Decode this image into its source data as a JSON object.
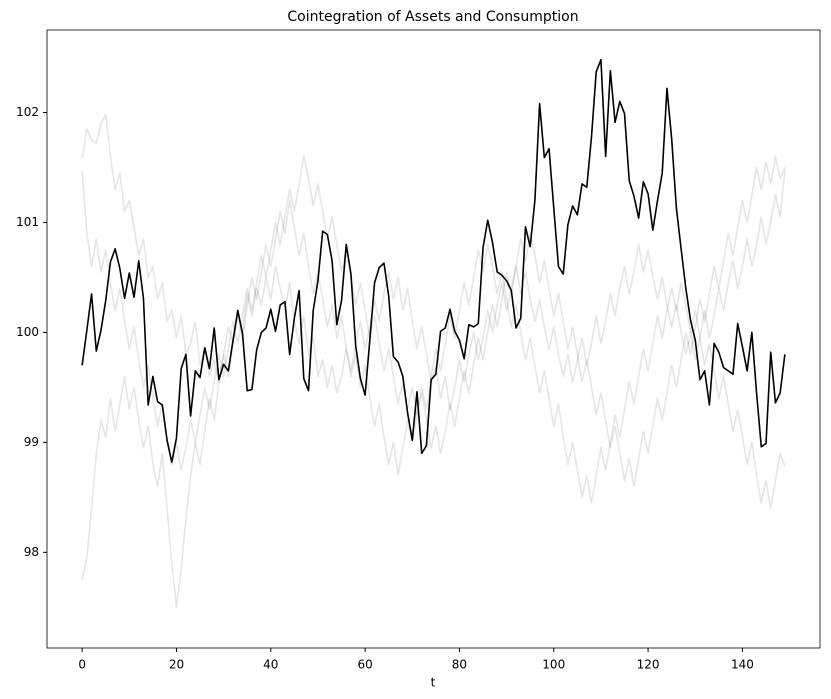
{
  "chart_data": {
    "type": "line",
    "title": "Cointegration of Assets and Consumption",
    "xlabel": "t",
    "x": [
      0,
      1,
      2,
      3,
      4,
      5,
      6,
      7,
      8,
      9,
      10,
      11,
      12,
      13,
      14,
      15,
      16,
      17,
      18,
      19,
      20,
      21,
      22,
      23,
      24,
      25,
      26,
      27,
      28,
      29,
      30,
      31,
      32,
      33,
      34,
      35,
      36,
      37,
      38,
      39,
      40,
      41,
      42,
      43,
      44,
      45,
      46,
      47,
      48,
      49,
      50,
      51,
      52,
      53,
      54,
      55,
      56,
      57,
      58,
      59,
      60,
      61,
      62,
      63,
      64,
      65,
      66,
      67,
      68,
      69,
      70,
      71,
      72,
      73,
      74,
      75,
      76,
      77,
      78,
      79,
      80,
      81,
      82,
      83,
      84,
      85,
      86,
      87,
      88,
      89,
      90,
      91,
      92,
      93,
      94,
      95,
      96,
      97,
      98,
      99,
      100,
      101,
      102,
      103,
      104,
      105,
      106,
      107,
      108,
      109,
      110,
      111,
      112,
      113,
      114,
      115,
      116,
      117,
      118,
      119,
      120,
      121,
      122,
      123,
      124,
      125,
      126,
      127,
      128,
      129,
      130,
      131,
      132,
      133,
      134,
      135,
      136,
      137,
      138,
      139,
      140,
      141,
      142,
      143,
      144,
      145,
      146,
      147,
      148,
      149
    ],
    "xlim": [
      -7.45,
      156.45
    ],
    "xticks": [
      0,
      20,
      40,
      60,
      80,
      100,
      120,
      140
    ],
    "ylim": [
      97.13,
      102.75
    ],
    "yticks": [
      98,
      99,
      100,
      101,
      102
    ],
    "series": [
      {
        "color": "#000000",
        "opacity": 0.1,
        "values": [
          101.58,
          101.85,
          101.75,
          101.72,
          101.9,
          101.98,
          101.6,
          101.3,
          101.45,
          101.1,
          101.2,
          100.95,
          100.7,
          100.85,
          100.5,
          100.6,
          100.3,
          100.45,
          100.1,
          100.2,
          99.95,
          100.15,
          99.8,
          99.9,
          100.1,
          99.7,
          99.85,
          99.6,
          99.75,
          99.55,
          99.8,
          100.05,
          99.9,
          100.2,
          100.0,
          100.35,
          100.15,
          100.4,
          100.25,
          100.5,
          100.3,
          100.6,
          100.4,
          100.2,
          100.45,
          100.1,
          99.9,
          100.15,
          99.8,
          99.95,
          99.6,
          99.75,
          99.5,
          99.7,
          99.45,
          99.6,
          99.85,
          99.65,
          99.9,
          100.1,
          99.85,
          100.05,
          100.3,
          100.1,
          100.35,
          100.55,
          100.3,
          100.5,
          100.2,
          100.4,
          100.1,
          99.85,
          100.05,
          99.8,
          99.55,
          99.7,
          99.4,
          99.6,
          99.3,
          99.5,
          99.75,
          99.55,
          99.8,
          100.0,
          99.75,
          99.95,
          100.2,
          100.0,
          100.25,
          100.45,
          100.2,
          100.4,
          100.6,
          100.35,
          100.55,
          100.3,
          100.1,
          100.3,
          100.05,
          99.85,
          100.05,
          99.8,
          99.6,
          99.8,
          99.55,
          99.75,
          99.95,
          99.7,
          99.9,
          100.15,
          99.9,
          100.1,
          100.35,
          100.15,
          100.4,
          100.6,
          100.35,
          100.55,
          100.8,
          100.55,
          100.75,
          100.5,
          100.3,
          100.5,
          100.25,
          100.05,
          100.25,
          100.0,
          99.8,
          100.0,
          99.75,
          99.95,
          100.2,
          99.95,
          100.15,
          100.4,
          100.2,
          100.45,
          100.65,
          100.4,
          100.6,
          100.85,
          100.6,
          100.8,
          101.05,
          100.8,
          101.0,
          101.25,
          101.05,
          101.47
        ]
      },
      {
        "color": "#000000",
        "opacity": 0.1,
        "values": [
          97.75,
          97.95,
          98.4,
          98.9,
          99.2,
          99.05,
          99.4,
          99.1,
          99.35,
          99.6,
          99.3,
          99.5,
          99.2,
          98.95,
          99.15,
          98.8,
          98.6,
          98.9,
          98.4,
          97.9,
          97.5,
          97.85,
          98.3,
          98.7,
          99.0,
          98.8,
          99.1,
          99.4,
          99.2,
          99.55,
          99.8,
          99.6,
          99.9,
          100.15,
          99.95,
          100.25,
          100.5,
          100.3,
          100.55,
          100.8,
          100.6,
          100.85,
          101.1,
          100.9,
          101.2,
          100.95,
          100.7,
          100.9,
          100.6,
          100.35,
          100.55,
          100.3,
          100.05,
          100.25,
          99.95,
          100.15,
          99.85,
          99.6,
          99.8,
          99.5,
          99.7,
          99.4,
          99.15,
          99.35,
          99.05,
          98.8,
          99.0,
          98.7,
          98.95,
          99.2,
          99.0,
          99.25,
          99.5,
          99.3,
          99.6,
          99.85,
          99.65,
          99.9,
          100.15,
          99.95,
          100.2,
          100.45,
          100.25,
          100.5,
          100.75,
          100.55,
          100.8,
          100.6,
          100.35,
          100.55,
          100.3,
          100.05,
          100.25,
          100.0,
          99.75,
          99.95,
          99.7,
          99.45,
          99.65,
          99.4,
          99.15,
          99.35,
          99.05,
          98.8,
          99.0,
          98.75,
          98.5,
          98.7,
          98.45,
          98.7,
          98.95,
          98.75,
          99.0,
          99.25,
          99.05,
          99.3,
          99.55,
          99.35,
          99.6,
          99.85,
          99.65,
          99.9,
          100.15,
          99.95,
          100.2,
          100.4,
          100.2,
          100.45,
          100.25,
          100.0,
          100.2,
          99.95,
          99.7,
          99.9,
          99.65,
          99.4,
          99.6,
          99.35,
          99.1,
          99.3,
          99.05,
          98.8,
          99.0,
          98.7,
          98.45,
          98.65,
          98.4,
          98.65,
          98.9,
          98.78
        ]
      },
      {
        "color": "#000000",
        "opacity": 0.1,
        "values": [
          101.47,
          100.9,
          100.6,
          100.85,
          100.55,
          100.75,
          100.45,
          100.2,
          100.4,
          100.1,
          99.85,
          100.05,
          99.75,
          99.5,
          99.7,
          99.4,
          99.15,
          99.35,
          99.05,
          98.8,
          99.0,
          98.75,
          98.95,
          99.2,
          99.0,
          99.25,
          99.5,
          99.3,
          99.55,
          99.8,
          99.6,
          99.85,
          100.1,
          99.9,
          100.15,
          100.4,
          100.2,
          100.45,
          100.7,
          100.5,
          100.75,
          101.0,
          100.8,
          101.05,
          101.3,
          101.1,
          101.35,
          101.6,
          101.4,
          101.15,
          101.35,
          101.1,
          100.85,
          101.05,
          100.8,
          100.55,
          100.75,
          100.5,
          100.25,
          100.45,
          100.2,
          99.95,
          100.15,
          99.9,
          99.65,
          99.85,
          99.6,
          99.35,
          99.55,
          99.3,
          99.5,
          99.25,
          99.45,
          99.2,
          98.95,
          99.15,
          98.9,
          99.1,
          99.35,
          99.15,
          99.4,
          99.65,
          99.45,
          99.7,
          99.95,
          99.75,
          100.0,
          100.25,
          100.05,
          100.3,
          100.55,
          100.35,
          100.6,
          100.85,
          100.65,
          100.9,
          100.7,
          100.45,
          100.65,
          100.4,
          100.15,
          100.35,
          100.1,
          99.85,
          100.05,
          99.8,
          99.55,
          99.75,
          99.5,
          99.25,
          99.45,
          99.2,
          98.95,
          99.15,
          98.9,
          98.65,
          98.85,
          98.6,
          98.85,
          99.1,
          98.9,
          99.15,
          99.4,
          99.2,
          99.45,
          99.7,
          99.5,
          99.75,
          100.0,
          99.8,
          100.05,
          100.3,
          100.1,
          100.35,
          100.6,
          100.4,
          100.65,
          100.9,
          100.7,
          100.95,
          101.2,
          101.0,
          101.25,
          101.5,
          101.3,
          101.55,
          101.35,
          101.6,
          101.4,
          101.5
        ]
      },
      {
        "color": "#000000",
        "opacity": 1,
        "values": [
          99.7,
          100.02,
          100.35,
          99.83,
          100.02,
          100.29,
          100.64,
          100.76,
          100.58,
          100.31,
          100.54,
          100.32,
          100.65,
          100.31,
          99.34,
          99.6,
          99.37,
          99.34,
          99.02,
          98.82,
          99.04,
          99.67,
          99.8,
          99.24,
          99.65,
          99.59,
          99.86,
          99.67,
          100.04,
          99.57,
          99.71,
          99.65,
          99.93,
          100.2,
          99.99,
          99.47,
          99.48,
          99.84,
          100.0,
          100.04,
          100.21,
          100.01,
          100.25,
          100.28,
          99.8,
          100.13,
          100.38,
          99.58,
          99.47,
          100.2,
          100.47,
          100.92,
          100.89,
          100.65,
          100.07,
          100.29,
          100.8,
          100.53,
          99.88,
          99.58,
          99.43,
          99.93,
          100.45,
          100.59,
          100.63,
          100.33,
          99.78,
          99.73,
          99.6,
          99.27,
          99.02,
          99.46,
          98.9,
          98.97,
          99.57,
          99.62,
          100.01,
          100.04,
          100.21,
          100.01,
          99.93,
          99.76,
          100.07,
          100.05,
          100.08,
          100.77,
          101.02,
          100.82,
          100.55,
          100.52,
          100.47,
          100.38,
          100.04,
          100.13,
          100.96,
          100.78,
          101.2,
          102.08,
          101.59,
          101.67,
          101.13,
          100.6,
          100.53,
          100.98,
          101.15,
          101.07,
          101.35,
          101.32,
          101.78,
          102.37,
          102.48,
          101.6,
          102.38,
          101.91,
          102.1,
          101.99,
          101.38,
          101.24,
          101.04,
          101.37,
          101.26,
          100.93,
          101.2,
          101.45,
          102.22,
          101.76,
          101.13,
          100.76,
          100.4,
          100.11,
          99.93,
          99.57,
          99.65,
          99.34,
          99.9,
          99.82,
          99.68,
          99.65,
          99.62,
          100.08,
          99.87,
          99.65,
          100.0,
          99.45,
          98.96,
          98.99,
          99.82,
          99.36,
          99.45,
          99.8
        ]
      }
    ]
  }
}
